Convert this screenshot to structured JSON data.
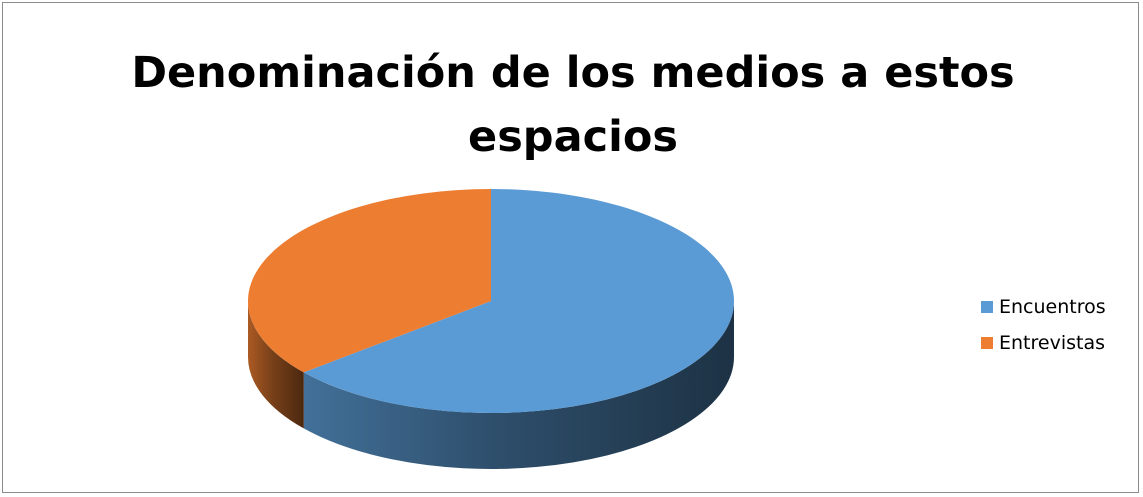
{
  "chart_data": {
    "type": "pie",
    "title_lines": [
      "Denominación de los medios a estos",
      "espacios"
    ],
    "series": [
      {
        "name": "Encuentros",
        "value": 64,
        "color": "#5b9bd5"
      },
      {
        "name": "Entrevistas",
        "value": 36,
        "color": "#ed7d31"
      }
    ],
    "style": "3d",
    "legend_position": "right"
  }
}
